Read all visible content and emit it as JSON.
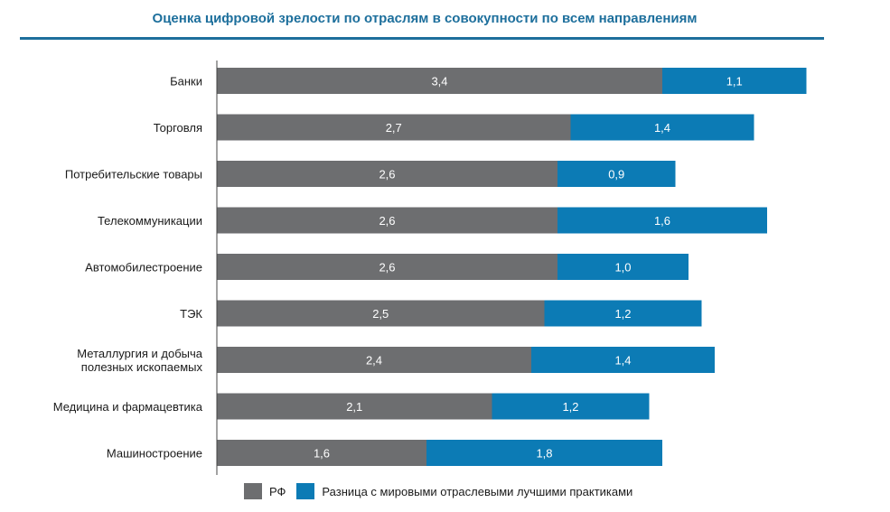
{
  "chart_data": {
    "type": "bar",
    "orientation": "horizontal",
    "stacked": true,
    "title": "Оценка цифровой зрелости по отраслям в совокупности по всем направлениям",
    "categories": [
      "Банки",
      "Торговля",
      "Потребительские товары",
      "Телекоммуникации",
      "Автомобилестроение",
      "ТЭК",
      "Металлургия и добыча|полезных ископаемых",
      "Медицина и фармацевтика",
      "Машиностроение"
    ],
    "series": [
      {
        "name": "РФ",
        "color": "#6d6e70",
        "values": [
          3.4,
          2.7,
          2.6,
          2.6,
          2.6,
          2.5,
          2.4,
          2.1,
          1.6
        ],
        "labels": [
          "3,4",
          "2,7",
          "2,6",
          "2,6",
          "2,6",
          "2,5",
          "2,4",
          "2,1",
          "1,6"
        ]
      },
      {
        "name": "Разница с мировыми отраслевыми лучшими практиками",
        "color": "#0c7bb5",
        "values": [
          1.1,
          1.4,
          0.9,
          1.6,
          1.0,
          1.2,
          1.4,
          1.2,
          1.8
        ],
        "labels": [
          "1,1",
          "1,4",
          "0,9",
          "1,6",
          "1,0",
          "1,2",
          "1,4",
          "1,2",
          "1,8"
        ]
      }
    ],
    "xlim": [
      0,
      4.5
    ],
    "grid": false,
    "legend_position": "bottom"
  }
}
